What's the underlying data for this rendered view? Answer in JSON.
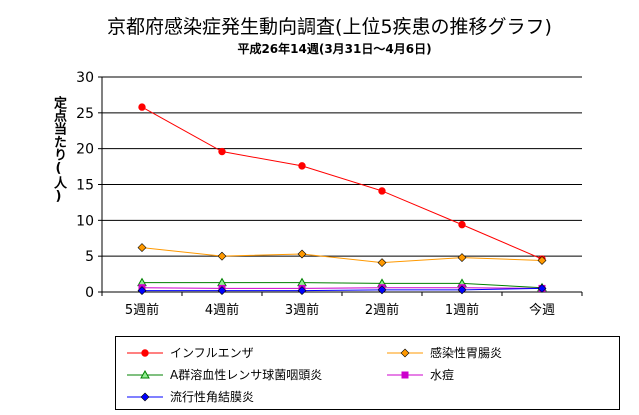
{
  "chart_data": {
    "type": "line",
    "title": "京都府感染症発生動向調査(上位5疾患の推移グラフ)",
    "subtitle": "平成26年14週(3月31日～4月6日)",
    "ylabel": "定点当たり(人)",
    "xlabel": "",
    "categories": [
      "5週前",
      "4週前",
      "3週前",
      "2週前",
      "1週前",
      "今週"
    ],
    "ylim": [
      0,
      30
    ],
    "yticks": [
      0,
      5,
      10,
      15,
      20,
      25,
      30
    ],
    "grid": true,
    "legend_position": "bottom",
    "series": [
      {
        "name": "インフルエンザ",
        "color": "#ff0000",
        "marker": "circle",
        "values": [
          25.8,
          19.6,
          17.6,
          14.1,
          9.4,
          4.6
        ]
      },
      {
        "name": "感染性胃腸炎",
        "color": "#ff9900",
        "marker": "diamond",
        "values": [
          6.2,
          5.0,
          5.3,
          4.1,
          4.8,
          4.4
        ]
      },
      {
        "name": "A群溶血性レンサ球菌咽頭炎",
        "color": "#008000",
        "marker": "triangle",
        "values": [
          1.3,
          1.3,
          1.3,
          1.2,
          1.2,
          0.6
        ]
      },
      {
        "name": "水痘",
        "color": "#cc00cc",
        "marker": "square",
        "values": [
          0.6,
          0.5,
          0.5,
          0.6,
          0.6,
          0.5
        ]
      },
      {
        "name": "流行性角結膜炎",
        "color": "#0000ff",
        "marker": "diamond",
        "values": [
          0.2,
          0.2,
          0.2,
          0.3,
          0.3,
          0.5
        ]
      }
    ]
  }
}
